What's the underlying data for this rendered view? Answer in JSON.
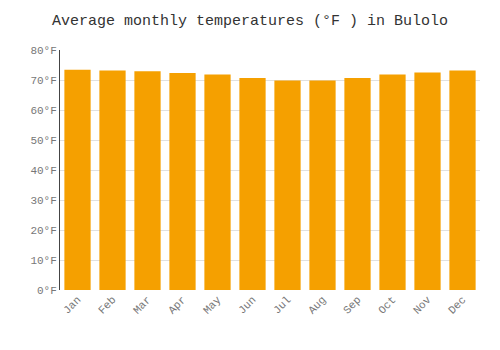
{
  "chart_data": {
    "type": "bar",
    "title": "Average monthly temperatures (°F ) in Bulolo",
    "categories": [
      "Jan",
      "Feb",
      "Mar",
      "Apr",
      "May",
      "Jun",
      "Jul",
      "Aug",
      "Sep",
      "Oct",
      "Nov",
      "Dec"
    ],
    "values": [
      73.4,
      73.2,
      72.9,
      72.3,
      71.8,
      70.7,
      69.8,
      69.8,
      70.7,
      71.8,
      72.5,
      73.2
    ],
    "color": "#F5A000",
    "ylim": [
      0,
      80
    ],
    "yticks": [
      {
        "value": 0,
        "label": "0°F"
      },
      {
        "value": 10,
        "label": "10°F"
      },
      {
        "value": 20,
        "label": "20°F"
      },
      {
        "value": 30,
        "label": "30°F"
      },
      {
        "value": 40,
        "label": "40°F"
      },
      {
        "value": 50,
        "label": "50°F"
      },
      {
        "value": 60,
        "label": "60°F"
      },
      {
        "value": 70,
        "label": "70°F"
      },
      {
        "value": 80,
        "label": "80°F"
      }
    ],
    "grid": true
  }
}
